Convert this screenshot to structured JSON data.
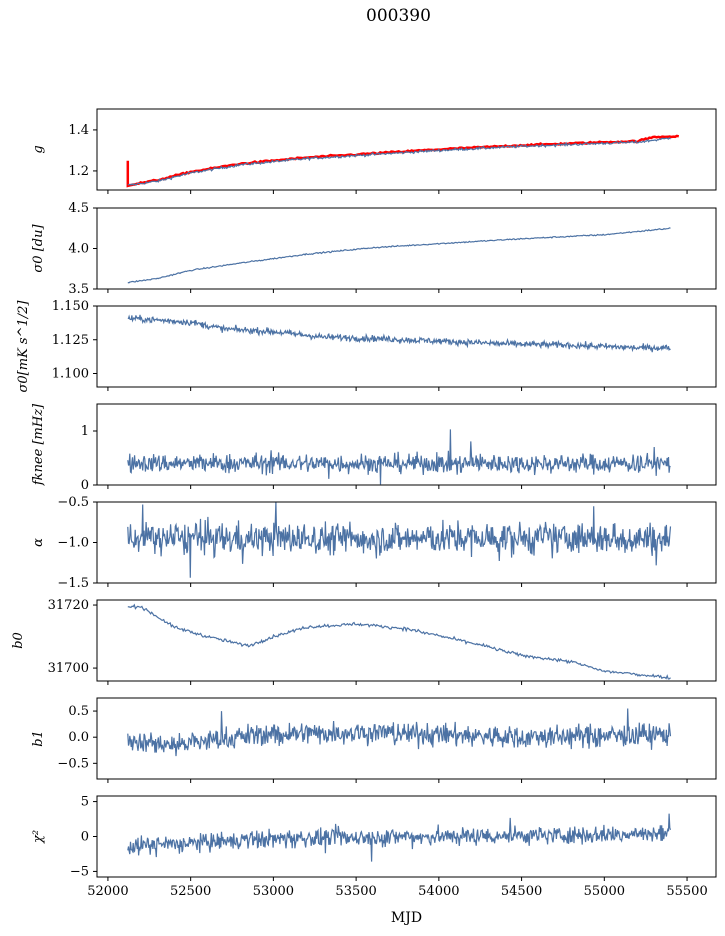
{
  "chart_data": {
    "type": "line",
    "title": "000390",
    "xlabel": "MJD",
    "xlim": [
      51934,
      55675
    ],
    "xticks": [
      52000,
      52500,
      53000,
      53500,
      54000,
      54500,
      55000,
      55500
    ],
    "x_start": 52120,
    "x_end": 55400,
    "line_color": "#4c72a4",
    "overlay_color": "#ff0000",
    "panels": [
      {
        "ylabel": "g",
        "ylim": [
          1.107,
          1.502
        ],
        "yticks": [
          1.2,
          1.4
        ],
        "tick_labels": [
          "1.2",
          "1.4"
        ],
        "trend": [
          [
            52120,
            1.13
          ],
          [
            52300,
            1.15
          ],
          [
            52500,
            1.19
          ],
          [
            52800,
            1.23
          ],
          [
            53200,
            1.26
          ],
          [
            53600,
            1.28
          ],
          [
            54000,
            1.3
          ],
          [
            54500,
            1.32
          ],
          [
            55000,
            1.335
          ],
          [
            55200,
            1.34
          ],
          [
            55300,
            1.35
          ],
          [
            55400,
            1.36
          ]
        ],
        "noise": 0.003,
        "overlay": {
          "trend": [
            [
              52120,
              1.13
            ],
            [
              52300,
              1.155
            ],
            [
              52500,
              1.195
            ],
            [
              52800,
              1.235
            ],
            [
              53200,
              1.265
            ],
            [
              53600,
              1.285
            ],
            [
              54000,
              1.305
            ],
            [
              54500,
              1.325
            ],
            [
              55000,
              1.34
            ],
            [
              55200,
              1.345
            ],
            [
              55300,
              1.365
            ],
            [
              55450,
              1.37
            ]
          ],
          "spike": [
            52120,
            1.25
          ]
        }
      },
      {
        "ylabel": "σ0 [du]",
        "ylim": [
          3.5,
          4.5
        ],
        "yticks": [
          3.5,
          4.0,
          4.5
        ],
        "tick_labels": [
          "3.5",
          "4.0",
          "4.5"
        ],
        "trend": [
          [
            52120,
            3.58
          ],
          [
            52300,
            3.63
          ],
          [
            52500,
            3.73
          ],
          [
            52800,
            3.82
          ],
          [
            53200,
            3.93
          ],
          [
            53600,
            4.01
          ],
          [
            54000,
            4.06
          ],
          [
            54500,
            4.12
          ],
          [
            55000,
            4.17
          ],
          [
            55400,
            4.25
          ]
        ],
        "noise": 0.004
      },
      {
        "ylabel": "σ0[mK s^1/2]",
        "ylim": [
          1.09,
          1.15
        ],
        "yticks": [
          1.1,
          1.125,
          1.15
        ],
        "tick_labels": [
          "1.100",
          "1.125",
          "1.150"
        ],
        "trend": [
          [
            52120,
            1.141
          ],
          [
            52500,
            1.138
          ],
          [
            52700,
            1.133
          ],
          [
            53000,
            1.131
          ],
          [
            53300,
            1.127
          ],
          [
            53600,
            1.126
          ],
          [
            54000,
            1.124
          ],
          [
            54400,
            1.122
          ],
          [
            54800,
            1.121
          ],
          [
            55200,
            1.119
          ],
          [
            55400,
            1.119
          ]
        ],
        "noise": 0.0012
      },
      {
        "ylabel": "fknee [mHz]",
        "ylim": [
          0,
          1.5
        ],
        "yticks": [
          0,
          1
        ],
        "tick_labels": [
          "0",
          "1"
        ],
        "trend": [
          [
            52120,
            0.4
          ],
          [
            55400,
            0.4
          ]
        ],
        "noise": 0.09
      },
      {
        "ylabel": "α",
        "ylim": [
          -1.5,
          -0.5
        ],
        "yticks": [
          -1.5,
          -1.0,
          -0.5
        ],
        "tick_labels": [
          "−1.5",
          "−1.0",
          "−0.5"
        ],
        "trend": [
          [
            52120,
            -0.95
          ],
          [
            55400,
            -0.95
          ]
        ],
        "noise": 0.1
      },
      {
        "ylabel": "b0",
        "ylim": [
          31695.9,
          31721.6
        ],
        "yticks": [
          31700,
          31720
        ],
        "tick_labels": [
          "31700",
          "31720"
        ],
        "trend": [
          [
            52120,
            31719.5
          ],
          [
            52200,
            31719.5
          ],
          [
            52400,
            31713
          ],
          [
            52600,
            31710
          ],
          [
            52850,
            31707
          ],
          [
            53000,
            31710
          ],
          [
            53200,
            31713
          ],
          [
            53500,
            31714
          ],
          [
            53800,
            31712.5
          ],
          [
            54200,
            31708
          ],
          [
            54500,
            31704
          ],
          [
            54800,
            31702
          ],
          [
            55000,
            31699
          ],
          [
            55400,
            31697
          ]
        ],
        "noise": 0.25
      },
      {
        "ylabel": "b1",
        "ylim": [
          -0.8,
          0.75
        ],
        "yticks": [
          -0.5,
          0.0,
          0.5
        ],
        "tick_labels": [
          "−0.5",
          "0.0",
          "0.5"
        ],
        "trend": [
          [
            52120,
            -0.05
          ],
          [
            52400,
            -0.15
          ],
          [
            52900,
            0.05
          ],
          [
            53500,
            0.1
          ],
          [
            54500,
            0.0
          ],
          [
            55400,
            0.05
          ]
        ],
        "noise": 0.11
      },
      {
        "ylabel": "χ²",
        "ylim": [
          -5.8,
          5.8
        ],
        "yticks": [
          -5,
          0,
          5
        ],
        "tick_labels": [
          "−5",
          "0",
          "5"
        ],
        "trend": [
          [
            52120,
            -1.4
          ],
          [
            52500,
            -1.0
          ],
          [
            53000,
            -0.3
          ],
          [
            54000,
            0.0
          ],
          [
            55400,
            0.4
          ]
        ],
        "noise": 0.65
      }
    ]
  }
}
